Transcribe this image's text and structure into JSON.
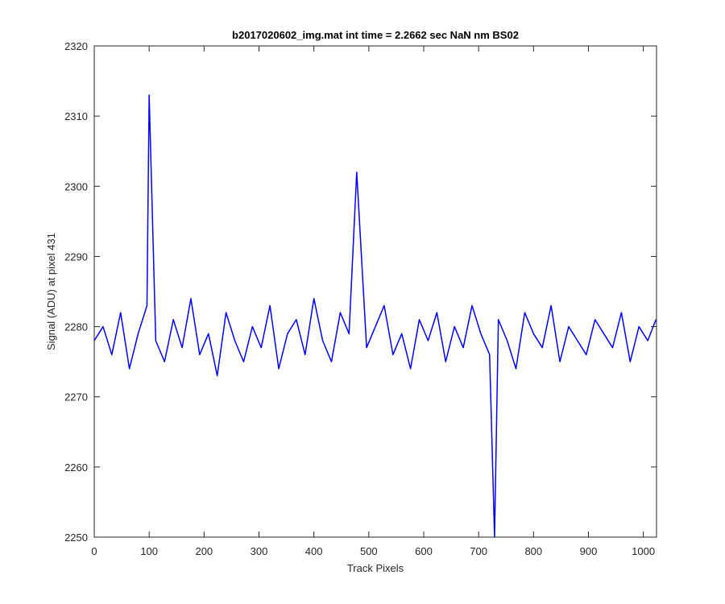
{
  "chart_data": {
    "type": "line",
    "title": "b2017020602_img.mat int time = 2.2662 sec  NaN nm BS02",
    "xlabel": "Track Pixels",
    "ylabel": "Signal (ADU) at pixel 431",
    "xlim": [
      0,
      1024
    ],
    "ylim": [
      2250,
      2320
    ],
    "xticks": [
      0,
      100,
      200,
      300,
      400,
      500,
      600,
      700,
      800,
      900,
      1000
    ],
    "yticks": [
      2250,
      2260,
      2270,
      2280,
      2290,
      2300,
      2310,
      2320
    ],
    "grid": false,
    "series": [
      {
        "color": "#0000ff",
        "note": "noisy signal; approximate values at 64 sampled track pixels",
        "x": [
          0,
          16,
          32,
          48,
          64,
          80,
          96,
          100,
          112,
          128,
          144,
          160,
          176,
          192,
          208,
          224,
          240,
          256,
          272,
          288,
          304,
          320,
          336,
          352,
          368,
          384,
          400,
          416,
          432,
          448,
          464,
          478,
          496,
          512,
          528,
          544,
          560,
          576,
          592,
          608,
          624,
          640,
          656,
          672,
          688,
          704,
          720,
          729,
          736,
          752,
          768,
          784,
          800,
          816,
          832,
          848,
          864,
          880,
          896,
          912,
          928,
          944,
          960,
          976,
          992,
          1008,
          1023
        ],
        "y": [
          2278,
          2280,
          2276,
          2282,
          2274,
          2279,
          2283,
          2313,
          2278,
          2275,
          2281,
          2277,
          2284,
          2276,
          2279,
          2273,
          2282,
          2278,
          2275,
          2280,
          2277,
          2283,
          2274,
          2279,
          2281,
          2276,
          2284,
          2278,
          2275,
          2282,
          2279,
          2302,
          2277,
          2280,
          2283,
          2276,
          2279,
          2274,
          2281,
          2278,
          2282,
          2275,
          2280,
          2277,
          2283,
          2279,
          2276,
          2250,
          2281,
          2278,
          2274,
          2282,
          2279,
          2277,
          2283,
          2275,
          2280,
          2278,
          2276,
          2281,
          2279,
          2277,
          2282,
          2275,
          2280,
          2278,
          2281
        ]
      }
    ]
  }
}
